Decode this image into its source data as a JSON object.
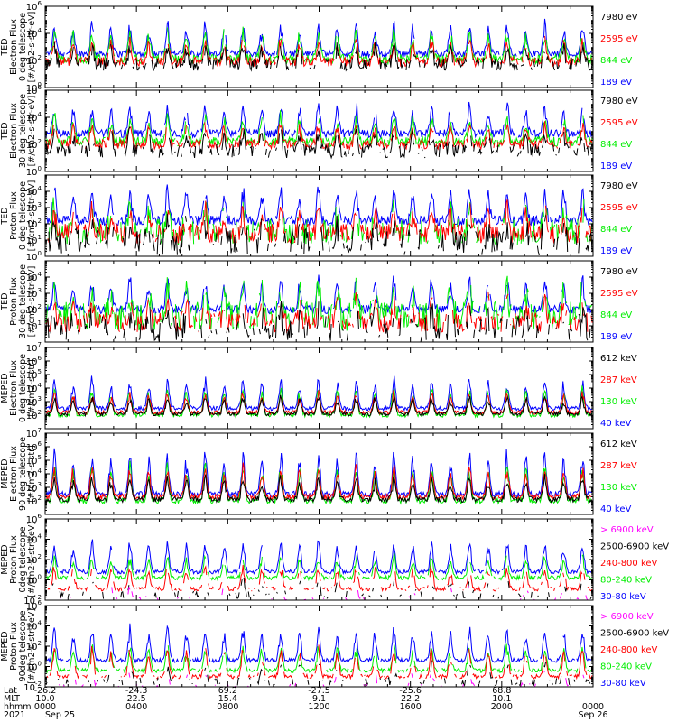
{
  "chart_data": [
    {
      "type": "line",
      "ylabel": [
        "TED",
        "Electron Flux",
        "0 deg telescope",
        "[#/cm2-s-str-eV]"
      ],
      "yscale": "log",
      "ylim_exp": [
        0,
        6
      ],
      "yticks": [
        {
          "b": "10",
          "e": "0"
        },
        {
          "b": "10",
          "e": "2"
        },
        {
          "b": "10",
          "e": "4"
        },
        {
          "b": "10",
          "e": "6"
        }
      ],
      "series": [
        {
          "name": "7980 eV",
          "color": "#000000",
          "base": 1.7,
          "peak": 3.0,
          "jitter": 0.45,
          "dropout": 0.25
        },
        {
          "name": "2595 eV",
          "color": "#ff0000",
          "base": 1.9,
          "peak": 3.4,
          "jitter": 0.35,
          "dropout": 0.06
        },
        {
          "name": "844 eV",
          "color": "#00ee00",
          "base": 2.1,
          "peak": 4.0,
          "jitter": 0.35,
          "dropout": 0.03
        },
        {
          "name": "189 eV",
          "color": "#0000ff",
          "base": 2.5,
          "peak": 4.6,
          "jitter": 0.25,
          "dropout": 0.02
        }
      ]
    },
    {
      "type": "line",
      "ylabel": [
        "TED",
        "Electron Flux",
        "30 deg telescope",
        "[#/cm2-s-str-eV]"
      ],
      "yscale": "log",
      "ylim_exp": [
        0,
        6
      ],
      "yticks": [
        {
          "b": "10",
          "e": "0"
        },
        {
          "b": "10",
          "e": "2"
        },
        {
          "b": "10",
          "e": "4"
        },
        {
          "b": "10",
          "e": "6"
        }
      ],
      "series": [
        {
          "name": "7980 eV",
          "color": "#000000",
          "base": 1.5,
          "peak": 2.8,
          "jitter": 0.5,
          "dropout": 0.25
        },
        {
          "name": "2595 eV",
          "color": "#ff0000",
          "base": 2.0,
          "peak": 3.4,
          "jitter": 0.35,
          "dropout": 0.06
        },
        {
          "name": "844 eV",
          "color": "#00ee00",
          "base": 2.2,
          "peak": 4.0,
          "jitter": 0.35,
          "dropout": 0.03
        },
        {
          "name": "189 eV",
          "color": "#0000ff",
          "base": 2.8,
          "peak": 4.7,
          "jitter": 0.3,
          "dropout": 0.02
        }
      ]
    },
    {
      "type": "line",
      "ylabel": [
        "TED",
        "Proton Flux",
        "0 deg telescope",
        "[#/cm2-s-str-eV]"
      ],
      "yscale": "log",
      "ylim_exp": [
        0,
        5
      ],
      "yticks": [
        {
          "b": "10",
          "e": "0"
        },
        {
          "b": "10",
          "e": "1"
        },
        {
          "b": "10",
          "e": "2"
        },
        {
          "b": "10",
          "e": "3"
        },
        {
          "b": "10",
          "e": "4"
        }
      ],
      "series": [
        {
          "name": "7980 eV",
          "color": "#000000",
          "base": 0.9,
          "peak": 2.0,
          "jitter": 0.8,
          "dropout": 0.35
        },
        {
          "name": "2595 eV",
          "color": "#ff0000",
          "base": 1.4,
          "peak": 2.8,
          "jitter": 0.6,
          "dropout": 0.15
        },
        {
          "name": "844 eV",
          "color": "#00ee00",
          "base": 1.5,
          "peak": 3.0,
          "jitter": 0.8,
          "dropout": 0.25
        },
        {
          "name": "189 eV",
          "color": "#0000ff",
          "base": 2.2,
          "peak": 4.0,
          "jitter": 0.3,
          "dropout": 0.03
        }
      ]
    },
    {
      "type": "line",
      "ylabel": [
        "TED",
        "Proton Flux",
        "30 deg telescope",
        "[#/cm2-s-str-eV]"
      ],
      "yscale": "log",
      "ylim_exp": [
        0,
        5
      ],
      "yticks": [
        {
          "b": "10",
          "e": "1"
        },
        {
          "b": "10",
          "e": "2"
        },
        {
          "b": "10",
          "e": "3"
        },
        {
          "b": "10",
          "e": "4"
        }
      ],
      "series": [
        {
          "name": "7980 eV",
          "color": "#000000",
          "base": 0.8,
          "peak": 1.8,
          "jitter": 0.8,
          "dropout": 0.4
        },
        {
          "name": "2595 eV",
          "color": "#ff0000",
          "base": 1.2,
          "peak": 2.5,
          "jitter": 0.6,
          "dropout": 0.2
        },
        {
          "name": "844 eV",
          "color": "#00ee00",
          "base": 1.6,
          "peak": 3.4,
          "jitter": 0.9,
          "dropout": 0.2
        },
        {
          "name": "189 eV",
          "color": "#0000ff",
          "base": 2.0,
          "peak": 3.8,
          "jitter": 0.25,
          "dropout": 0.03
        }
      ]
    },
    {
      "type": "line",
      "ylabel": [
        "MEPED",
        "Electron Flux",
        "0 deg telescope",
        "[#/cm2-s-str]"
      ],
      "yscale": "log",
      "ylim_exp": [
        1,
        7
      ],
      "yticks": [
        {
          "b": "10",
          "e": "2"
        },
        {
          "b": "10",
          "e": "3"
        },
        {
          "b": "10",
          "e": "4"
        },
        {
          "b": "10",
          "e": "5"
        },
        {
          "b": "10",
          "e": "6"
        },
        {
          "b": "10",
          "e": "7"
        }
      ],
      "series": [
        {
          "name": "612 keV",
          "color": "#000000",
          "base": 2.1,
          "peak": 3.3,
          "jitter": 0.15,
          "dropout": 0.0
        },
        {
          "name": "287 keV",
          "color": "#ff0000",
          "base": 2.2,
          "peak": 3.6,
          "jitter": 0.15,
          "dropout": 0.0
        },
        {
          "name": "130 keV",
          "color": "#00ee00",
          "base": 2.0,
          "peak": 3.9,
          "jitter": 0.15,
          "dropout": 0.0
        },
        {
          "name": "40 keV",
          "color": "#0000ff",
          "base": 2.5,
          "peak": 4.5,
          "jitter": 0.15,
          "dropout": 0.0
        }
      ]
    },
    {
      "type": "line",
      "ylabel": [
        "MEPED",
        "Electron Flux",
        "90 deg telescope",
        "[#/cm2-s-str]"
      ],
      "yscale": "log",
      "ylim_exp": [
        1,
        7
      ],
      "yticks": [
        {
          "b": "10",
          "e": "2"
        },
        {
          "b": "10",
          "e": "3"
        },
        {
          "b": "10",
          "e": "4"
        },
        {
          "b": "10",
          "e": "5"
        },
        {
          "b": "10",
          "e": "6"
        },
        {
          "b": "10",
          "e": "7"
        }
      ],
      "series": [
        {
          "name": "612 keV",
          "color": "#000000",
          "base": 2.1,
          "peak": 3.6,
          "jitter": 0.2,
          "dropout": 0.0
        },
        {
          "name": "287 keV",
          "color": "#ff0000",
          "base": 2.3,
          "peak": 4.4,
          "jitter": 0.2,
          "dropout": 0.0
        },
        {
          "name": "130 keV",
          "color": "#00ee00",
          "base": 2.0,
          "peak": 4.5,
          "jitter": 0.2,
          "dropout": 0.0
        },
        {
          "name": "40 keV",
          "color": "#0000ff",
          "base": 2.5,
          "peak": 5.3,
          "jitter": 0.2,
          "dropout": 0.0
        }
      ]
    },
    {
      "type": "line",
      "ylabel": [
        "MEPED",
        "Proton Flux",
        "0deg telescope",
        "[#/cm2-s-str-keV]"
      ],
      "yscale": "log",
      "ylim_exp": [
        -2,
        6
      ],
      "yticks": [
        {
          "b": "10",
          "e": "-2"
        },
        {
          "b": "10",
          "e": "0"
        },
        {
          "b": "10",
          "e": "2"
        },
        {
          "b": "10",
          "e": "4"
        },
        {
          "b": "10",
          "e": "6"
        }
      ],
      "series": [
        {
          "name": "> 6900 keV",
          "color": "#ff00ff",
          "base": -1.9,
          "peak": -0.6,
          "jitter": 0.2,
          "dropout": 0.7
        },
        {
          "name": "2500-6900 keV",
          "color": "#000000",
          "base": -1.5,
          "peak": 0.0,
          "jitter": 0.4,
          "dropout": 0.6
        },
        {
          "name": "240-800 keV",
          "color": "#ff0000",
          "base": -0.9,
          "peak": 1.2,
          "jitter": 0.2,
          "dropout": 0.2
        },
        {
          "name": "80-240 keV",
          "color": "#00ee00",
          "base": 0.2,
          "peak": 2.2,
          "jitter": 0.2,
          "dropout": 0.05
        },
        {
          "name": "30-80 keV",
          "color": "#0000ff",
          "base": 0.8,
          "peak": 3.6,
          "jitter": 0.2,
          "dropout": 0.02
        }
      ]
    },
    {
      "type": "line",
      "ylabel": [
        "MEPED",
        "Proton Flux",
        "90deg telescope",
        "[#/cm2-s-str-keV]"
      ],
      "yscale": "log",
      "ylim_exp": [
        -2,
        6
      ],
      "yticks": [
        {
          "b": "10",
          "e": "-2"
        },
        {
          "b": "10",
          "e": "0"
        },
        {
          "b": "10",
          "e": "2"
        },
        {
          "b": "10",
          "e": "4"
        },
        {
          "b": "10",
          "e": "6"
        }
      ],
      "series": [
        {
          "name": "> 6900 keV",
          "color": "#ff00ff",
          "base": -1.9,
          "peak": -0.6,
          "jitter": 0.2,
          "dropout": 0.7
        },
        {
          "name": "2500-6900 keV",
          "color": "#000000",
          "base": -1.5,
          "peak": 0.2,
          "jitter": 0.4,
          "dropout": 0.6
        },
        {
          "name": "240-800 keV",
          "color": "#ff0000",
          "base": -1.0,
          "peak": 1.6,
          "jitter": 0.2,
          "dropout": 0.2
        },
        {
          "name": "80-240 keV",
          "color": "#00ee00",
          "base": -0.4,
          "peak": 1.8,
          "jitter": 0.2,
          "dropout": 0.05
        },
        {
          "name": "30-80 keV",
          "color": "#0000ff",
          "base": 0.6,
          "peak": 3.6,
          "jitter": 0.2,
          "dropout": 0.02
        }
      ]
    }
  ],
  "x_axis": {
    "row_labels": [
      "Lat",
      "MLT",
      "hhmm",
      "2021"
    ],
    "ticks": [
      {
        "lat": "-26.2",
        "mlt": "10.0",
        "hhmm": "0000",
        "date": "Sep 25"
      },
      {
        "lat": "-24.3",
        "mlt": "22.5",
        "hhmm": "0400",
        "date": ""
      },
      {
        "lat": "69.2",
        "mlt": "15.4",
        "hhmm": "0800",
        "date": ""
      },
      {
        "lat": "-27.5",
        "mlt": "9.1",
        "hhmm": "1200",
        "date": ""
      },
      {
        "lat": "-25.6",
        "mlt": "22.2",
        "hhmm": "1600",
        "date": ""
      },
      {
        "lat": "68.8",
        "mlt": "10.1",
        "hhmm": "2000",
        "date": ""
      },
      {
        "lat": "",
        "mlt": "",
        "hhmm": "0000",
        "date": "Sep 26"
      }
    ]
  }
}
